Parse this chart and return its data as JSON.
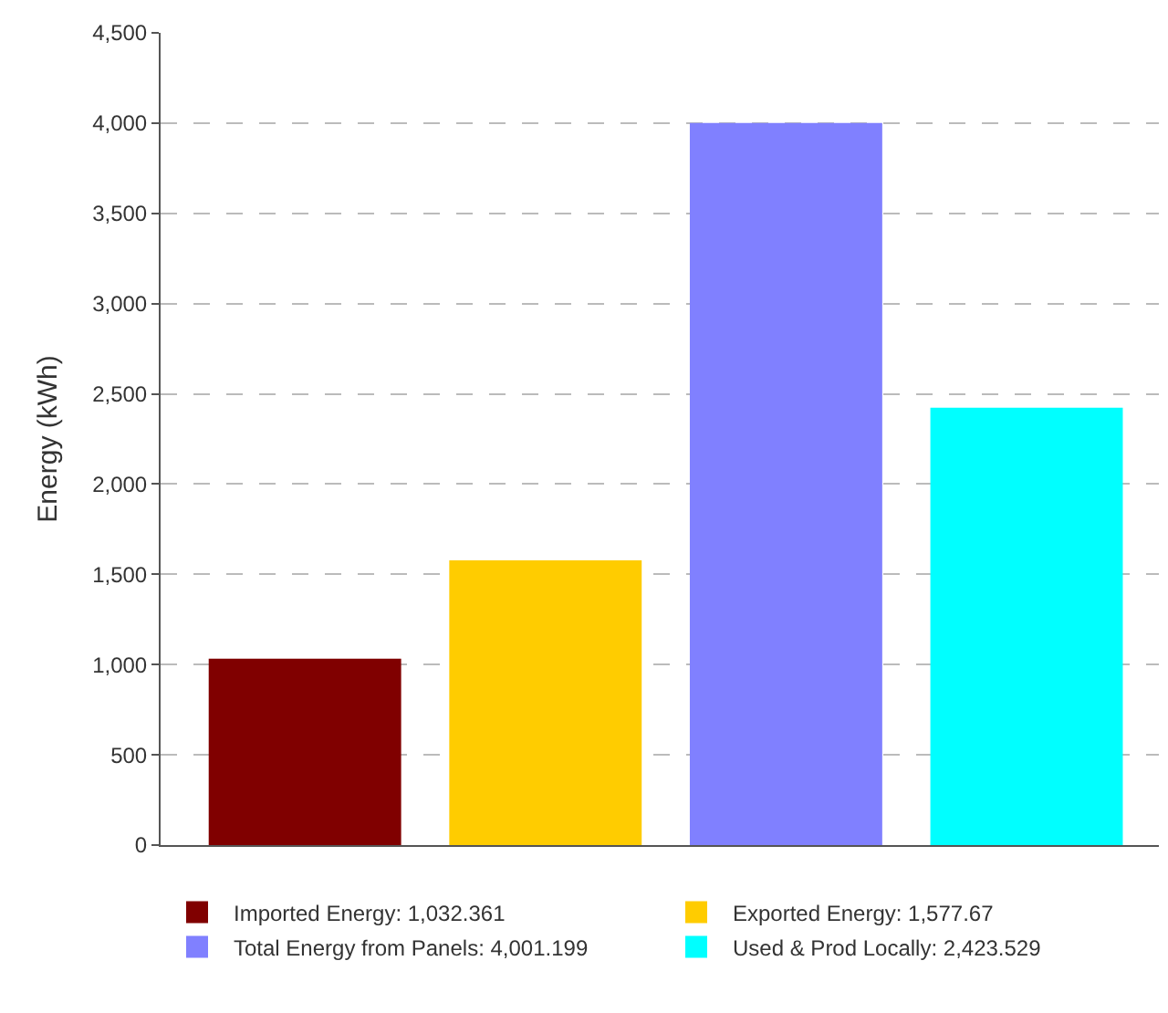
{
  "chart_data": {
    "type": "bar",
    "ylabel": "Energy (kWh)",
    "categories": [
      null,
      null,
      null,
      null
    ],
    "series": [
      {
        "name": "Imported Energy: 1,032.361",
        "color": "#800000",
        "values": [
          1032.361,
          null,
          null,
          null
        ]
      },
      {
        "name": "Exported Energy: 1,577.67",
        "color": "#ffcc00",
        "values": [
          null,
          1577.67,
          null,
          null
        ]
      },
      {
        "name": "Total Energy from Panels: 4,001.199",
        "color": "#8080ff",
        "values": [
          null,
          null,
          4001.199,
          null
        ]
      },
      {
        "name": "Used & Prod Locally: 2,423.529",
        "color": "#00ffff",
        "values": [
          null,
          null,
          null,
          2423.529
        ]
      }
    ],
    "ylim": [
      0,
      4500
    ],
    "yticks": [
      0,
      500,
      {
        "value": 1000,
        "label": "1,000"
      },
      {
        "value": 1500,
        "label": "1,500"
      },
      {
        "value": 2000,
        "label": "2,000"
      },
      {
        "value": 2500,
        "label": "2,500"
      },
      {
        "value": 3000,
        "label": "3,000"
      },
      {
        "value": 3500,
        "label": "3,500"
      },
      {
        "value": 4000,
        "label": "4,000"
      },
      {
        "value": 4500,
        "label": "4,500"
      }
    ],
    "grid": "y",
    "legend": "bottom",
    "tick_labels": "y"
  }
}
